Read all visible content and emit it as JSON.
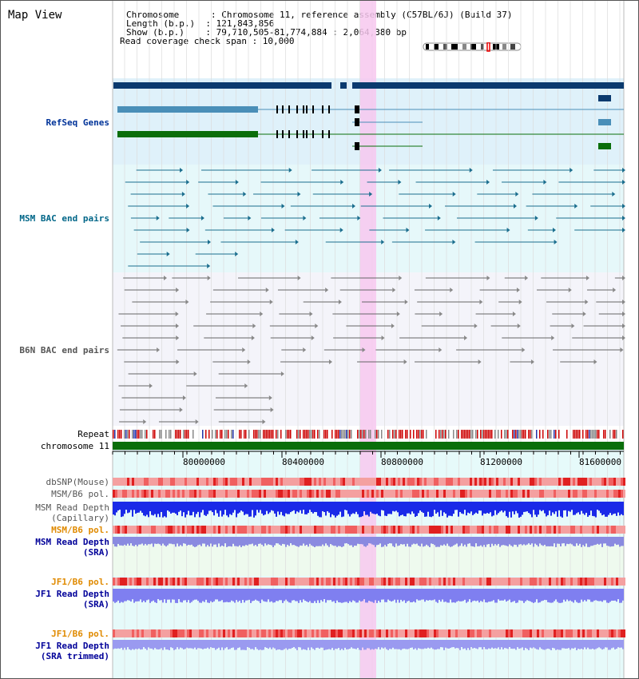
{
  "view": {
    "title": "Map View",
    "info_lines": [
      "Chromosome      : Chromosome 11, reference assembly (C57BL/6J) (Build 37)",
      "Length (b.p.)  : 121,843,856",
      "Show (b.p.)    : 79,710,505-81,774,884 : 2,064,380 bp",
      "Read coverage check span : 10,000"
    ]
  },
  "tracks": {
    "refseq": "RefSeq Genes",
    "msm_bac": "MSM BAC end pairs",
    "b6n_bac": "B6N BAC end pairs",
    "repeat": "Repeat",
    "chromosome": "chromosome 11",
    "dbsnp": "dbSNP(Mouse)",
    "msm_b6_pol": "MSM/B6 pol.",
    "msm_depth_cap_1": "MSM Read Depth",
    "msm_depth_cap_2": "(Capillary)",
    "msm_b6_pol_2": "MSM/B6 pol.",
    "msm_depth_sra_1": "MSM Read Depth",
    "msm_depth_sra_2": "(SRA)",
    "jf1_b6_pol": "JF1/B6 pol.",
    "jf1_depth_sra_1": "JF1 Read Depth",
    "jf1_depth_sra_2": "(SRA)",
    "jf1_b6_pol_2": "JF1/B6 pol.",
    "jf1_depth_trim_1": "JF1 Read Depth",
    "jf1_depth_trim_2": "(SRA trimmed)"
  },
  "axis": {
    "ticks": [
      "80000000",
      "80400000",
      "80800000",
      "81200000",
      "81600000"
    ]
  },
  "colors": {
    "gene_dark": "#0b3a6e",
    "gene_mid": "#4a8fb8",
    "gene_green": "#0a6e0a",
    "msm_bac": "#1b6e8e",
    "b6n_bac": "#666666",
    "highlight": "#f7c8ee",
    "label_blue": "#003399",
    "label_teal": "#006688",
    "label_orange": "#e08a00",
    "label_navy": "#000099"
  }
}
